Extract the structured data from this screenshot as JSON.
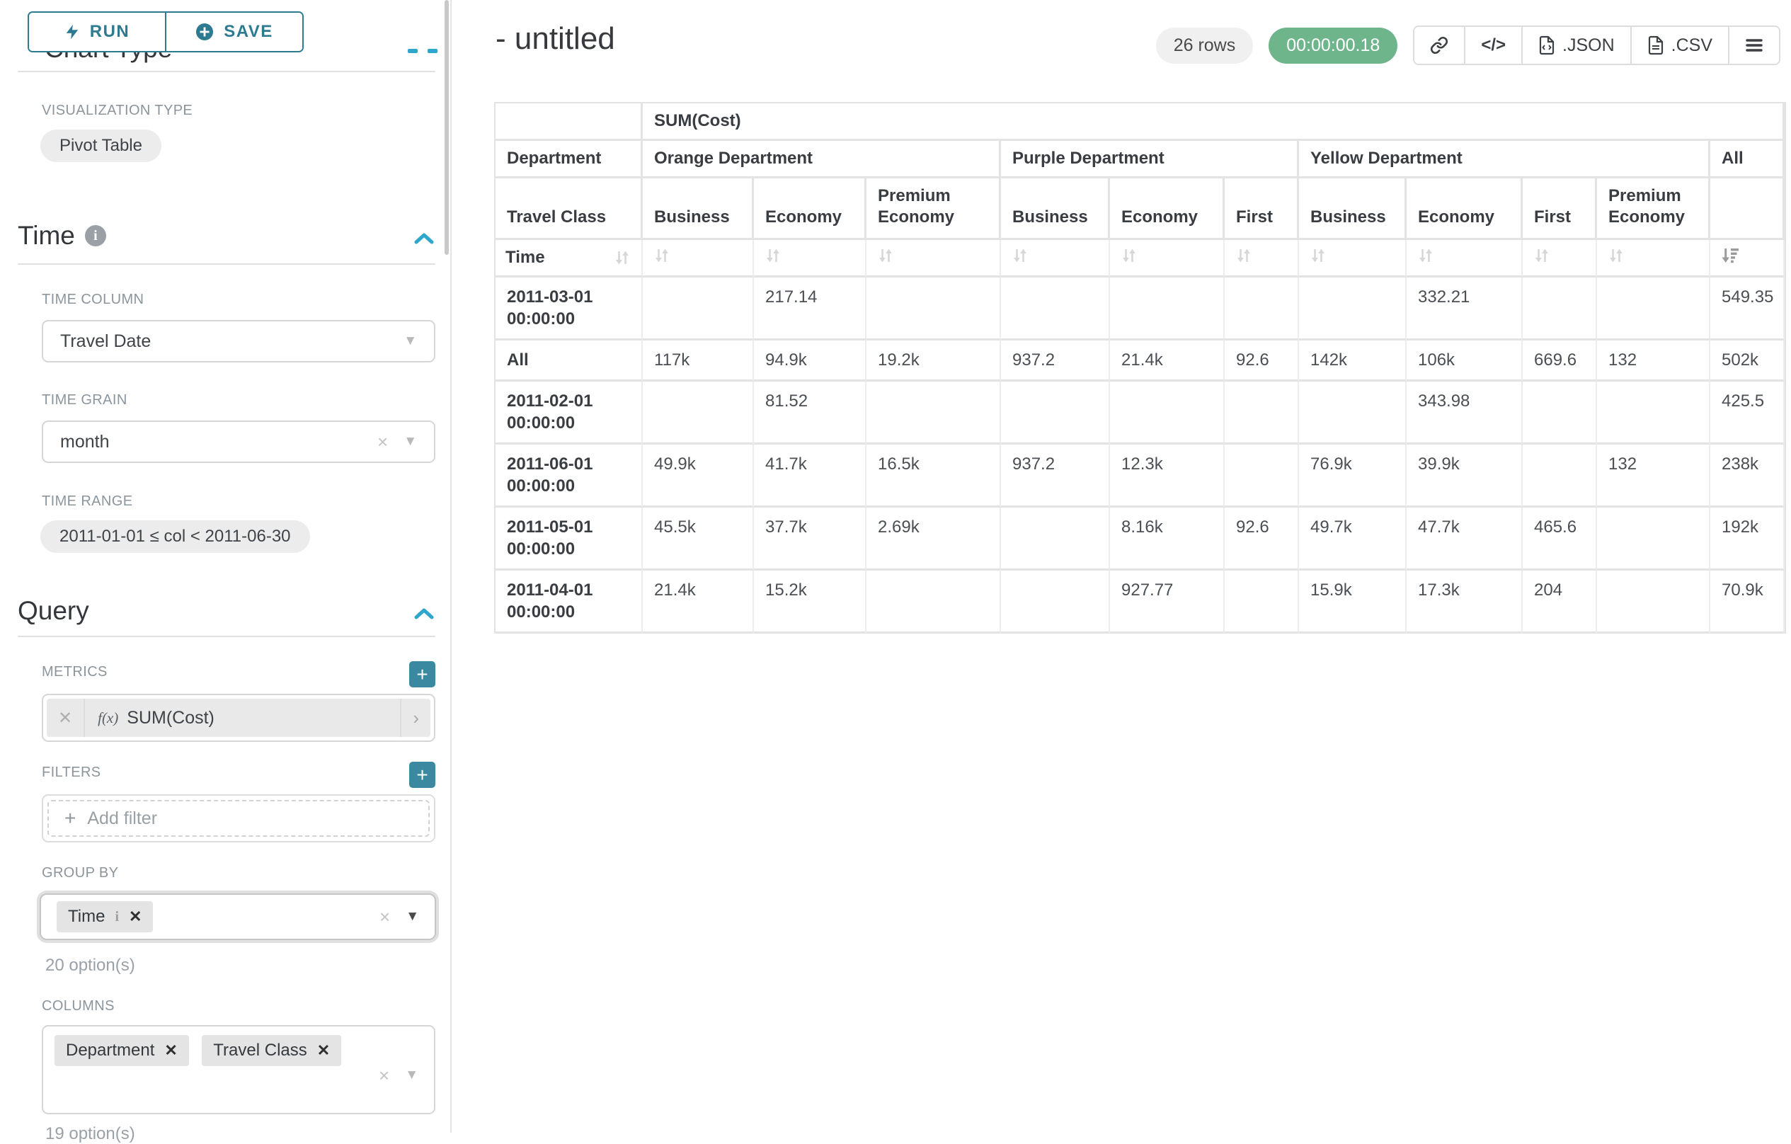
{
  "colors": {
    "teal": "#2e7a90",
    "tealbtn": "#3b89a0",
    "blue": "#2fa6cc",
    "green": "#6fb58c",
    "label": "#8b959b"
  },
  "sidebar": {
    "run_label": "RUN",
    "save_label": "SAVE",
    "chart_type_heading": "Chart Type",
    "visualization_type_label": "VISUALIZATION TYPE",
    "visualization_type_value": "Pivot Table",
    "time_section": {
      "title": "Time",
      "time_column_label": "TIME COLUMN",
      "time_column_value": "Travel Date",
      "time_grain_label": "TIME GRAIN",
      "time_grain_value": "month",
      "time_range_label": "TIME RANGE",
      "time_range_value": "2011-01-01 ≤ col < 2011-06-30"
    },
    "query_section": {
      "title": "Query",
      "metrics_label": "METRICS",
      "metric_prefix": "f(x)",
      "metric_value": "SUM(Cost)",
      "filters_label": "FILTERS",
      "add_filter_placeholder": "Add filter",
      "group_by_label": "GROUP BY",
      "group_by_values": [
        "Time"
      ],
      "group_by_options_hint": "20 option(s)",
      "columns_label": "COLUMNS",
      "columns_values": [
        "Department",
        "Travel Class"
      ],
      "columns_options_hint": "19 option(s)"
    }
  },
  "header": {
    "title": "- untitled",
    "row_count": "26 rows",
    "duration": "00:00:00.18",
    "code_glyph": "</>",
    "export_json_label": ".JSON",
    "export_csv_label": ".CSV"
  },
  "table": {
    "metric_header": "SUM(Cost)",
    "row_dim_label": "Department",
    "col_groups": [
      {
        "label": "Orange Department",
        "span": 3
      },
      {
        "label": "Purple Department",
        "span": 3
      },
      {
        "label": "Yellow Department",
        "span": 4
      },
      {
        "label": "All",
        "span": 1
      }
    ],
    "travel_class_label": "Travel Class",
    "sub_columns": [
      "Business",
      "Economy",
      "Premium Economy",
      "Business",
      "Economy",
      "First",
      "Business",
      "Economy",
      "First",
      "Premium Economy",
      ""
    ],
    "time_label": "Time",
    "rows": [
      {
        "time": "2011-03-01 00:00:00",
        "values": [
          "",
          "217.14",
          "",
          "",
          "",
          "",
          "",
          "332.21",
          "",
          "",
          "549.35"
        ]
      },
      {
        "time": "All",
        "values": [
          "117k",
          "94.9k",
          "19.2k",
          "937.2",
          "21.4k",
          "92.6",
          "142k",
          "106k",
          "669.6",
          "132",
          "502k"
        ]
      },
      {
        "time": "2011-02-01 00:00:00",
        "values": [
          "",
          "81.52",
          "",
          "",
          "",
          "",
          "",
          "343.98",
          "",
          "",
          "425.5"
        ]
      },
      {
        "time": "2011-06-01 00:00:00",
        "values": [
          "49.9k",
          "41.7k",
          "16.5k",
          "937.2",
          "12.3k",
          "",
          "76.9k",
          "39.9k",
          "",
          "132",
          "238k"
        ]
      },
      {
        "time": "2011-05-01 00:00:00",
        "values": [
          "45.5k",
          "37.7k",
          "2.69k",
          "",
          "8.16k",
          "92.6",
          "49.7k",
          "47.7k",
          "465.6",
          "",
          "192k"
        ]
      },
      {
        "time": "2011-04-01 00:00:00",
        "values": [
          "21.4k",
          "15.2k",
          "",
          "",
          "927.77",
          "",
          "15.9k",
          "17.3k",
          "204",
          "",
          "70.9k"
        ]
      }
    ]
  }
}
